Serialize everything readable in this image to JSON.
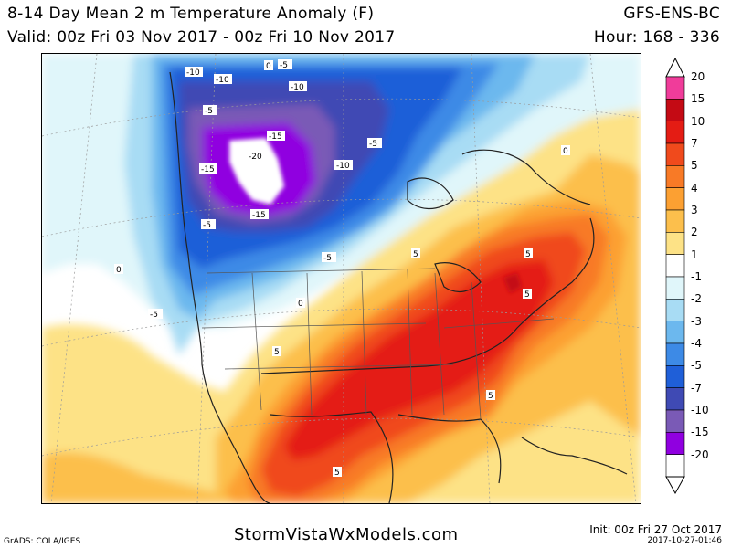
{
  "header": {
    "title": "8-14 Day Mean 2 m Temperature Anomaly (F)",
    "valid": "Valid: 00z Fri 03 Nov 2017 - 00z Fri 10 Nov 2017",
    "model": "GFS-ENS-BC",
    "hour": "Hour: 168 - 336"
  },
  "colorbar": {
    "levels": [
      {
        "label": "20",
        "color": "#f03c9a"
      },
      {
        "label": "15",
        "color": "#c40a14"
      },
      {
        "label": "10",
        "color": "#e41c14"
      },
      {
        "label": "7",
        "color": "#f04a1c"
      },
      {
        "label": "5",
        "color": "#f87a26"
      },
      {
        "label": "4",
        "color": "#fca032"
      },
      {
        "label": "3",
        "color": "#fcbf4c"
      },
      {
        "label": "2",
        "color": "#fde286"
      },
      {
        "label": "1",
        "color": "#ffffff"
      },
      {
        "label": "-1",
        "color": "#e0f6fa"
      },
      {
        "label": "-2",
        "color": "#a8dcf4"
      },
      {
        "label": "-3",
        "color": "#6cb8ee"
      },
      {
        "label": "-4",
        "color": "#3d8ae6"
      },
      {
        "label": "-5",
        "color": "#1f5fd8"
      },
      {
        "label": "-7",
        "color": "#3f4ab4"
      },
      {
        "label": "-10",
        "color": "#7a5ab6"
      },
      {
        "label": "-15",
        "color": "#9000e0"
      },
      {
        "label": "-20",
        "color": "#ffffff"
      }
    ]
  },
  "map": {
    "contour_labels": [
      "-10",
      "-10",
      "-5",
      "-10",
      "-15",
      "-20",
      "-10",
      "-5",
      "-15",
      "-5",
      "-15",
      "-5",
      "-5",
      "0",
      "0",
      "0",
      "-5",
      "5",
      "5",
      "5",
      "5",
      "5",
      "5",
      "0"
    ]
  },
  "footer": {
    "site": "StormVistaWxModels.com",
    "grads": "GrADS: COLA/IGES",
    "init": "Init: 00z Fri 27 Oct 2017",
    "stamp": "2017-10-27-01:46"
  }
}
